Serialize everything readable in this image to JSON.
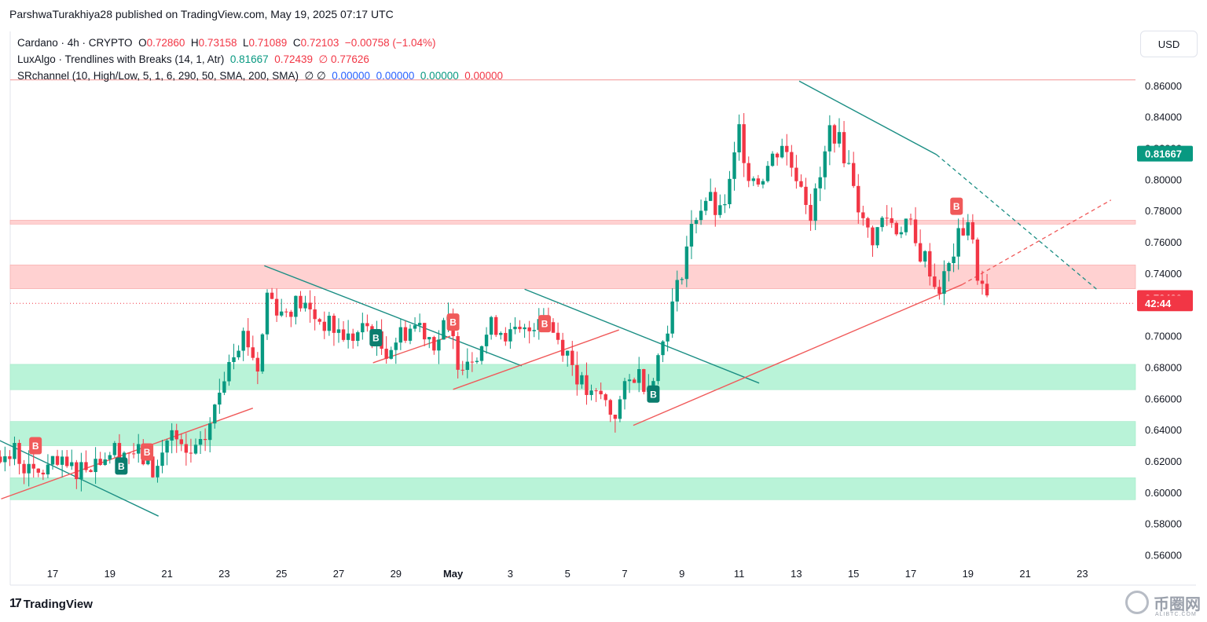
{
  "header": {
    "published": "ParshwaTurakhiya28 published on TradingView.com, May 19, 2025 07:17 UTC"
  },
  "legend": {
    "symbol": "Cardano · 4h · CRYPTO",
    "o_label": "O",
    "o": "0.72860",
    "h_label": "H",
    "h": "0.73158",
    "l_label": "L",
    "l": "0.71089",
    "c_label": "C",
    "c": "0.72103",
    "change": "−0.00758 (−1.04%)",
    "indicator1": "LuxAlgo · Trendlines with Breaks (14, 1, Atr)",
    "ind1_v1": "0.81667",
    "ind1_v2": "0.72439",
    "ind1_v3": "∅ 0.77626",
    "indicator2": "SRchannel (10, High/Low, 5, 1, 6, 290, 50, SMA, 200, SMA)",
    "ind2_v0": "∅ ∅",
    "ind2_v1": "0.00000",
    "ind2_v2": "0.00000",
    "ind2_v3": "0.00000",
    "ind2_v4": "0.00000"
  },
  "currency_button": "USD",
  "footer": {
    "brand": "TradingView",
    "watermark": "币圈网",
    "watermark_sub": "ALIBTC.COM"
  },
  "colors": {
    "up": "#089981",
    "down": "#f23645",
    "trend_down": "#1b8e84",
    "trend_up": "#f05a5a",
    "support_zone": "#b9f3d8",
    "resistance_zone": "#ffd1d1"
  },
  "chart_data": {
    "type": "candlestick",
    "symbol": "Cardano",
    "interval": "4h",
    "ylim": [
      0.55,
      0.87
    ],
    "y_ticks": [
      "0.56000",
      "0.58000",
      "0.60000",
      "0.62000",
      "0.64000",
      "0.66000",
      "0.68000",
      "0.70000",
      "0.72000",
      "0.74000",
      "0.76000",
      "0.78000",
      "0.80000",
      "0.82000",
      "0.84000",
      "0.86000"
    ],
    "x_ticks": [
      {
        "label": "17",
        "day": 17
      },
      {
        "label": "19",
        "day": 19
      },
      {
        "label": "21",
        "day": 21
      },
      {
        "label": "23",
        "day": 23
      },
      {
        "label": "25",
        "day": 25
      },
      {
        "label": "27",
        "day": 27
      },
      {
        "label": "29",
        "day": 29
      },
      {
        "label": "May",
        "day": 31
      },
      {
        "label": "3",
        "day": 33
      },
      {
        "label": "5",
        "day": 35
      },
      {
        "label": "7",
        "day": 37
      },
      {
        "label": "9",
        "day": 39
      },
      {
        "label": "11",
        "day": 41
      },
      {
        "label": "13",
        "day": 43
      },
      {
        "label": "15",
        "day": 45
      },
      {
        "label": "17",
        "day": 47
      },
      {
        "label": "19",
        "day": 49
      },
      {
        "label": "21",
        "day": 51
      },
      {
        "label": "23",
        "day": 53
      }
    ],
    "price_labels": [
      {
        "text": "0.81667",
        "value": 0.81667,
        "color": "#089981"
      },
      {
        "text": "0.72439",
        "value": 0.72439,
        "color": "#f23645"
      },
      {
        "text": "42:44",
        "value": 0.721,
        "color": "#f23645"
      }
    ],
    "close_path": [
      [
        15.7,
        0.625
      ],
      [
        16.3,
        0.61
      ],
      [
        17.0,
        0.617
      ],
      [
        17.8,
        0.615
      ],
      [
        18.6,
        0.622
      ],
      [
        19.2,
        0.628
      ],
      [
        20.0,
        0.625
      ],
      [
        20.6,
        0.612
      ],
      [
        21.1,
        0.64
      ],
      [
        21.6,
        0.622
      ],
      [
        22.2,
        0.628
      ],
      [
        22.7,
        0.655
      ],
      [
        23.2,
        0.69
      ],
      [
        23.7,
        0.702
      ],
      [
        24.2,
        0.678
      ],
      [
        24.5,
        0.728
      ],
      [
        25.0,
        0.715
      ],
      [
        25.6,
        0.722
      ],
      [
        26.2,
        0.712
      ],
      [
        26.8,
        0.705
      ],
      [
        27.4,
        0.698
      ],
      [
        28.0,
        0.706
      ],
      [
        28.6,
        0.69
      ],
      [
        29.2,
        0.702
      ],
      [
        29.8,
        0.708
      ],
      [
        30.4,
        0.695
      ],
      [
        30.8,
        0.71
      ],
      [
        31.2,
        0.683
      ],
      [
        31.8,
        0.69
      ],
      [
        32.4,
        0.708
      ],
      [
        33.0,
        0.7
      ],
      [
        33.6,
        0.702
      ],
      [
        34.1,
        0.718
      ],
      [
        34.6,
        0.7
      ],
      [
        35.0,
        0.69
      ],
      [
        35.4,
        0.672
      ],
      [
        35.8,
        0.66
      ],
      [
        36.2,
        0.662
      ],
      [
        36.6,
        0.648
      ],
      [
        37.0,
        0.665
      ],
      [
        37.4,
        0.678
      ],
      [
        37.8,
        0.668
      ],
      [
        38.2,
        0.688
      ],
      [
        38.6,
        0.715
      ],
      [
        38.9,
        0.735
      ],
      [
        39.2,
        0.76
      ],
      [
        39.5,
        0.778
      ],
      [
        39.9,
        0.79
      ],
      [
        40.3,
        0.775
      ],
      [
        40.7,
        0.798
      ],
      [
        41.0,
        0.832
      ],
      [
        41.3,
        0.805
      ],
      [
        41.7,
        0.8
      ],
      [
        42.1,
        0.812
      ],
      [
        42.5,
        0.824
      ],
      [
        42.8,
        0.81
      ],
      [
        43.2,
        0.798
      ],
      [
        43.5,
        0.778
      ],
      [
        43.9,
        0.805
      ],
      [
        44.2,
        0.835
      ],
      [
        44.6,
        0.82
      ],
      [
        45.0,
        0.8
      ],
      [
        45.3,
        0.772
      ],
      [
        45.7,
        0.762
      ],
      [
        46.1,
        0.778
      ],
      [
        46.5,
        0.768
      ],
      [
        46.9,
        0.775
      ],
      [
        47.2,
        0.755
      ],
      [
        47.6,
        0.748
      ],
      [
        47.9,
        0.728
      ],
      [
        48.3,
        0.742
      ],
      [
        48.6,
        0.76
      ],
      [
        49.0,
        0.775
      ],
      [
        49.3,
        0.742
      ],
      [
        49.7,
        0.721
      ]
    ],
    "trendlines_down": [
      {
        "x1": 13.0,
        "y1": 0.652,
        "x2": 20.7,
        "y2": 0.585
      },
      {
        "x1": 24.4,
        "y1": 0.745,
        "x2": 33.4,
        "y2": 0.681
      },
      {
        "x1": 33.5,
        "y1": 0.73,
        "x2": 41.7,
        "y2": 0.67
      },
      {
        "x1": 43.1,
        "y1": 0.863,
        "x2": 47.9,
        "y2": 0.816,
        "ext_x2": 53.5,
        "ext_y2": 0.73
      }
    ],
    "trendlines_up": [
      {
        "x1": 15.2,
        "y1": 0.596,
        "x2": 24.0,
        "y2": 0.654
      },
      {
        "x1": 28.2,
        "y1": 0.683,
        "x2": 30.9,
        "y2": 0.7
      },
      {
        "x1": 31.0,
        "y1": 0.666,
        "x2": 36.8,
        "y2": 0.704
      },
      {
        "x1": 37.3,
        "y1": 0.643,
        "x2": 48.8,
        "y2": 0.733,
        "ext_x2": 54.0,
        "ext_y2": 0.787
      }
    ],
    "resistance_zones": [
      [
        0.7716,
        0.7741
      ],
      [
        0.7303,
        0.7455
      ]
    ],
    "support_zones": [
      [
        0.6658,
        0.682
      ],
      [
        0.63,
        0.6455
      ],
      [
        0.5955,
        0.6095
      ]
    ],
    "top_line": 0.8638,
    "current_price_line": 0.721,
    "signals": [
      {
        "type": "break_down",
        "label": "B",
        "x": 16.4,
        "y": 0.63
      },
      {
        "type": "break_up",
        "label": "B",
        "x": 19.4,
        "y": 0.617
      },
      {
        "type": "break_down",
        "label": "B",
        "x": 20.3,
        "y": 0.626
      },
      {
        "type": "break_up",
        "label": "B",
        "x": 28.3,
        "y": 0.699
      },
      {
        "type": "break_down",
        "label": "B",
        "x": 31.0,
        "y": 0.709
      },
      {
        "type": "break_down",
        "label": "B",
        "x": 34.2,
        "y": 0.708
      },
      {
        "type": "break_up",
        "label": "B",
        "x": 38.0,
        "y": 0.663
      },
      {
        "type": "break_down",
        "label": "B",
        "x": 48.6,
        "y": 0.783
      }
    ]
  }
}
